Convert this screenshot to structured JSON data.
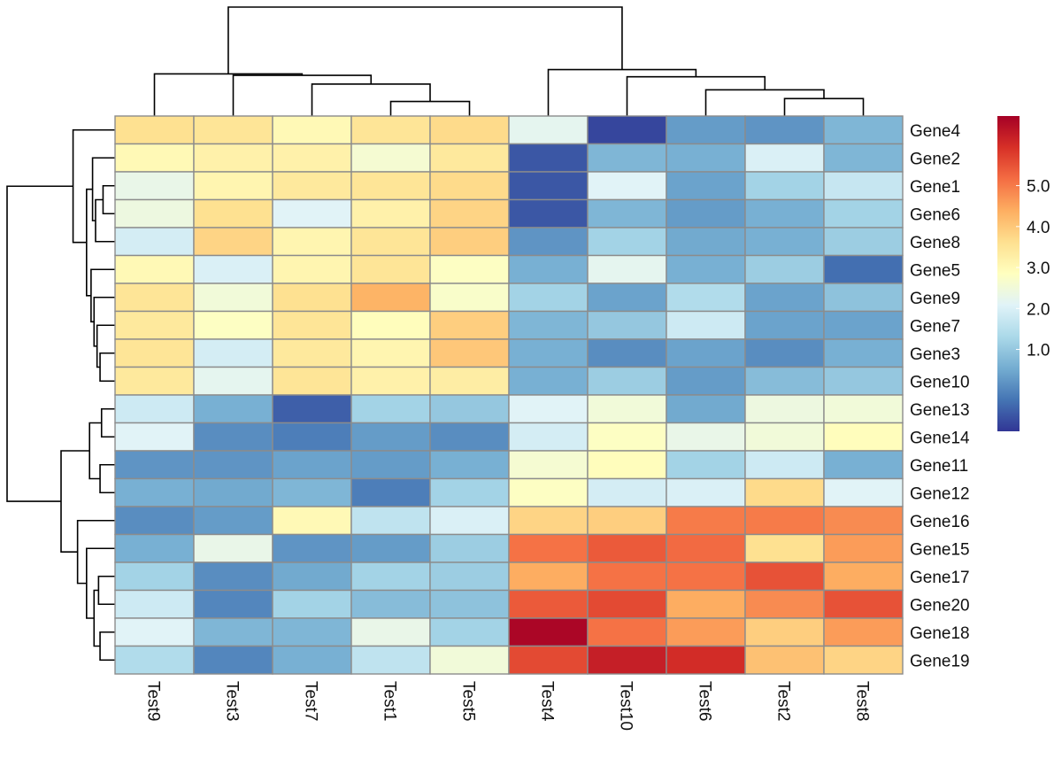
{
  "chart_data": {
    "type": "heatmap",
    "title": "",
    "xlabel": "",
    "ylabel": "",
    "columns": [
      "Test9",
      "Test3",
      "Test7",
      "Test1",
      "Test5",
      "Test4",
      "Test10",
      "Test6",
      "Test2",
      "Test8"
    ],
    "rows": [
      "Gene4",
      "Gene2",
      "Gene1",
      "Gene6",
      "Gene8",
      "Gene5",
      "Gene9",
      "Gene7",
      "Gene3",
      "Gene10",
      "Gene13",
      "Gene14",
      "Gene11",
      "Gene12",
      "Gene16",
      "Gene15",
      "Gene17",
      "Gene20",
      "Gene18",
      "Gene19"
    ],
    "values": [
      [
        3.6,
        3.5,
        3.0,
        3.5,
        3.7,
        2.2,
        -0.8,
        0.3,
        0.2,
        0.7
      ],
      [
        3.0,
        3.2,
        3.2,
        2.6,
        3.4,
        -0.6,
        0.7,
        0.6,
        2.0,
        0.7
      ],
      [
        2.3,
        3.1,
        3.4,
        3.5,
        3.7,
        -0.6,
        2.1,
        0.4,
        1.2,
        1.7
      ],
      [
        2.4,
        3.6,
        2.1,
        3.2,
        3.8,
        -0.6,
        0.7,
        0.3,
        0.6,
        1.2
      ],
      [
        1.9,
        3.8,
        3.1,
        3.5,
        3.9,
        0.2,
        1.2,
        0.5,
        0.6,
        1.1
      ],
      [
        3.0,
        2.0,
        3.1,
        3.5,
        2.8,
        0.6,
        2.2,
        0.6,
        1.1,
        -0.3
      ],
      [
        3.5,
        2.5,
        3.6,
        4.3,
        2.7,
        1.2,
        0.4,
        1.4,
        0.4,
        0.9
      ],
      [
        3.4,
        2.8,
        3.5,
        2.9,
        3.9,
        0.7,
        1.0,
        1.8,
        0.4,
        0.4
      ],
      [
        3.5,
        1.9,
        3.4,
        3.1,
        4.0,
        0.6,
        0.1,
        0.4,
        0.1,
        0.6
      ],
      [
        3.4,
        2.2,
        3.5,
        3.2,
        3.3,
        0.6,
        1.1,
        0.3,
        0.8,
        1.0
      ],
      [
        1.8,
        0.6,
        -0.5,
        1.2,
        1.0,
        2.1,
        2.5,
        0.5,
        2.4,
        2.5
      ],
      [
        2.1,
        0.1,
        -0.1,
        0.3,
        0.1,
        1.9,
        2.8,
        2.3,
        2.5,
        2.9
      ],
      [
        0.2,
        0.2,
        0.4,
        0.3,
        0.6,
        2.6,
        2.9,
        1.2,
        1.8,
        0.6
      ],
      [
        0.6,
        0.5,
        0.7,
        -0.1,
        1.2,
        2.8,
        1.9,
        2.0,
        3.7,
        2.1
      ],
      [
        0.1,
        0.3,
        3.0,
        1.6,
        2.0,
        3.8,
        3.9,
        5.0,
        5.0,
        4.8
      ],
      [
        0.6,
        2.3,
        0.2,
        0.3,
        1.1,
        5.1,
        5.4,
        5.2,
        3.6,
        4.6
      ],
      [
        1.2,
        0.1,
        0.5,
        1.2,
        1.1,
        4.4,
        5.1,
        5.1,
        5.5,
        4.4
      ],
      [
        1.8,
        0.0,
        1.2,
        0.8,
        0.9,
        5.4,
        5.6,
        4.4,
        4.8,
        5.5
      ],
      [
        2.1,
        0.7,
        0.7,
        2.3,
        1.2,
        6.6,
        5.1,
        4.6,
        3.9,
        4.6
      ],
      [
        1.4,
        0.0,
        0.6,
        1.6,
        2.5,
        5.6,
        6.2,
        6.0,
        4.1,
        3.8
      ]
    ],
    "color_scale": {
      "range": [
        -1.0,
        6.7
      ],
      "ticks": [
        "1.0",
        "2.0",
        "3.0",
        "4.0",
        "5.0"
      ],
      "colors": [
        "#313695",
        "#4575b4",
        "#74add1",
        "#abd9e9",
        "#e0f3f8",
        "#ffffbf",
        "#fee090",
        "#fdae61",
        "#f46d43",
        "#d73027",
        "#a50026"
      ],
      "cell_border": "#8c8c8c"
    },
    "legend": "right",
    "col_dendrogram": {
      "leaves": [
        "Test9",
        "Test3",
        "Test7",
        "Test1",
        "Test5",
        "Test4",
        "Test10",
        "Test6",
        "Test2",
        "Test8"
      ],
      "merges": [
        {
          "a": "Test1",
          "b": "Test5",
          "h": 1.0
        },
        {
          "a": "Test2",
          "b": "Test8",
          "h": 1.2
        },
        {
          "a": "Test6",
          "b": "m2",
          "h": 1.8
        },
        {
          "a": "Test7",
          "b": "m1",
          "h": 2.2
        },
        {
          "a": "Test10",
          "b": "m3",
          "h": 2.7
        },
        {
          "a": "Test3",
          "b": "m4",
          "h": 2.8
        },
        {
          "a": "Test9",
          "b": "m6",
          "h": 2.9
        },
        {
          "a": "Test4",
          "b": "m5",
          "h": 3.2
        },
        {
          "a": "m7",
          "b": "m8",
          "h": 7.5
        }
      ]
    },
    "row_dendrogram": {
      "leaves": [
        "Gene4",
        "Gene2",
        "Gene1",
        "Gene6",
        "Gene8",
        "Gene5",
        "Gene9",
        "Gene7",
        "Gene3",
        "Gene10",
        "Gene13",
        "Gene14",
        "Gene11",
        "Gene12",
        "Gene16",
        "Gene15",
        "Gene17",
        "Gene20",
        "Gene18",
        "Gene19"
      ],
      "merges": [
        {
          "a": "Gene1",
          "b": "Gene6",
          "h": 0.8
        },
        {
          "a": "Gene13",
          "b": "Gene14",
          "h": 0.9
        },
        {
          "a": "Gene11",
          "b": "Gene12",
          "h": 1.0
        },
        {
          "a": "Gene3",
          "b": "Gene10",
          "h": 1.0
        },
        {
          "a": "Gene18",
          "b": "Gene19",
          "h": 1.0
        },
        {
          "a": "Gene17",
          "b": "Gene20",
          "h": 1.1
        },
        {
          "a": "Gene7",
          "b": "m4",
          "h": 1.2
        },
        {
          "a": "m1",
          "b": "Gene8",
          "h": 1.3
        },
        {
          "a": "Gene9",
          "b": "m7",
          "h": 1.4
        },
        {
          "a": "m6",
          "b": "m5",
          "h": 1.4
        },
        {
          "a": "Gene2",
          "b": "m8",
          "h": 1.5
        },
        {
          "a": "Gene5",
          "b": "m9",
          "h": 1.6
        },
        {
          "a": "m2",
          "b": "m3",
          "h": 1.7
        },
        {
          "a": "m11",
          "b": "m12",
          "h": 1.9
        },
        {
          "a": "Gene15",
          "b": "m10",
          "h": 1.9
        },
        {
          "a": "Gene4",
          "b": "m14",
          "h": 2.8
        },
        {
          "a": "Gene16",
          "b": "m15",
          "h": 2.5
        },
        {
          "a": "m13",
          "b": "m17",
          "h": 3.6
        },
        {
          "a": "m16",
          "b": "m18",
          "h": 7.2
        }
      ]
    }
  }
}
